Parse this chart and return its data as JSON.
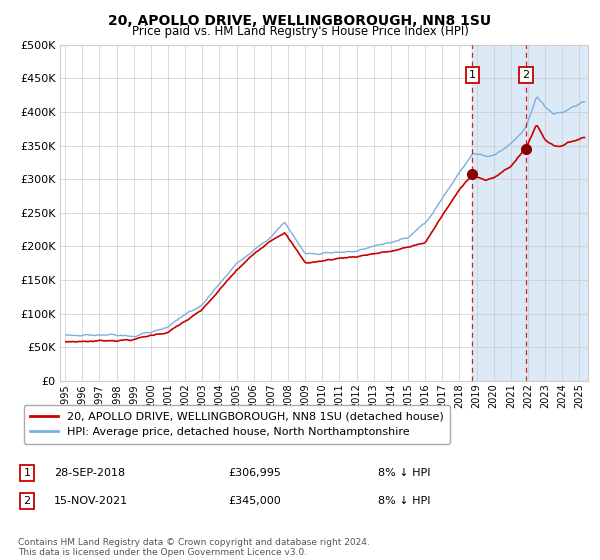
{
  "title": "20, APOLLO DRIVE, WELLINGBOROUGH, NN8 1SU",
  "subtitle": "Price paid vs. HM Land Registry's House Price Index (HPI)",
  "ylim": [
    0,
    500000
  ],
  "yticks": [
    0,
    50000,
    100000,
    150000,
    200000,
    250000,
    300000,
    350000,
    400000,
    450000,
    500000
  ],
  "ytick_labels": [
    "£0",
    "£50K",
    "£100K",
    "£150K",
    "£200K",
    "£250K",
    "£300K",
    "£350K",
    "£400K",
    "£450K",
    "£500K"
  ],
  "hpi_color": "#7ab0e0",
  "price_color": "#cc0000",
  "marker_color": "#8b0000",
  "grid_color": "#cccccc",
  "bg_color": "#ffffff",
  "highlight_bg": "#dce9f7",
  "sale1_date": 2018.75,
  "sale1_price": 306995,
  "sale1_label": "1",
  "sale1_hpi_label": "8% ↓ HPI",
  "sale1_date_str": "28-SEP-2018",
  "sale1_price_str": "£306,995",
  "sale2_date": 2021.88,
  "sale2_price": 345000,
  "sale2_label": "2",
  "sale2_hpi_label": "8% ↓ HPI",
  "sale2_date_str": "15-NOV-2021",
  "sale2_price_str": "£345,000",
  "legend_line1": "20, APOLLO DRIVE, WELLINGBOROUGH, NN8 1SU (detached house)",
  "legend_line2": "HPI: Average price, detached house, North Northamptonshire",
  "footer": "Contains HM Land Registry data © Crown copyright and database right 2024.\nThis data is licensed under the Open Government Licence v3.0.",
  "xlim_start": 1994.7,
  "xlim_end": 2025.5,
  "xticks": [
    1995,
    1996,
    1997,
    1998,
    1999,
    2000,
    2001,
    2002,
    2003,
    2004,
    2005,
    2006,
    2007,
    2008,
    2009,
    2010,
    2011,
    2012,
    2013,
    2014,
    2015,
    2016,
    2017,
    2018,
    2019,
    2020,
    2021,
    2022,
    2023,
    2024,
    2025
  ]
}
